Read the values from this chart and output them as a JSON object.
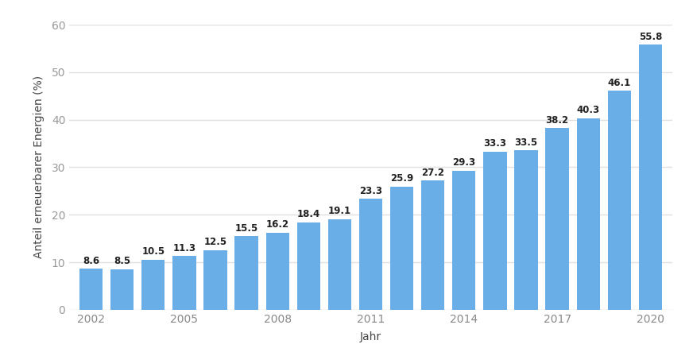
{
  "years": [
    2002,
    2003,
    2004,
    2005,
    2006,
    2007,
    2008,
    2009,
    2010,
    2011,
    2012,
    2013,
    2014,
    2015,
    2016,
    2017,
    2018,
    2019,
    2020
  ],
  "values": [
    8.6,
    8.5,
    10.5,
    11.3,
    12.5,
    15.5,
    16.2,
    18.4,
    19.1,
    23.3,
    25.9,
    27.2,
    29.3,
    33.3,
    33.5,
    38.2,
    40.3,
    46.1,
    55.8
  ],
  "bar_color": "#6aaee8",
  "background_color": "#ffffff",
  "plot_bg_color": "#ffffff",
  "ylabel": "Anteil erneuerbarer Energien (%)",
  "xlabel": "Jahr",
  "ylim": [
    0,
    60
  ],
  "yticks": [
    0,
    10,
    20,
    30,
    40,
    50,
    60
  ],
  "xtick_shown": [
    "2002",
    "2005",
    "2008",
    "2011",
    "2014",
    "2017",
    "2020"
  ],
  "xtick_positions": [
    2002,
    2005,
    2008,
    2011,
    2014,
    2017,
    2020
  ],
  "label_fontsize": 8.5,
  "axis_label_fontsize": 10,
  "tick_fontsize": 10,
  "bar_width": 0.75,
  "grid_color": "#e0e0e0",
  "label_color": "#222222",
  "tick_color": "#555555"
}
